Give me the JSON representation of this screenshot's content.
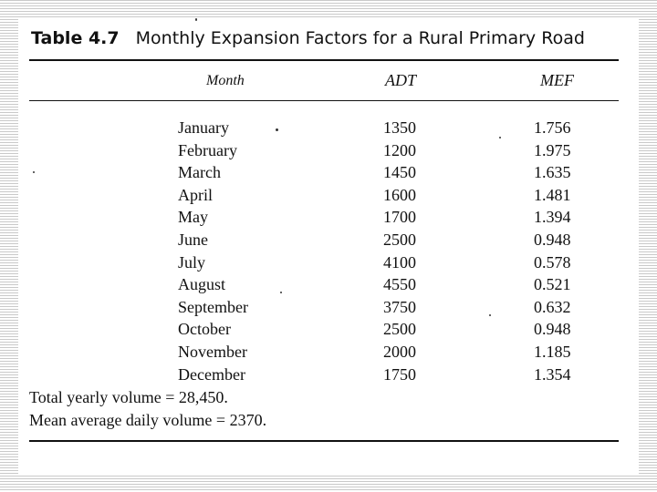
{
  "table": {
    "number": "Table 4.7",
    "title": "Monthly Expansion Factors for a Rural Primary Road",
    "headers": {
      "month": "Month",
      "adt": "ADT",
      "mef": "MEF"
    },
    "rows": [
      {
        "month": "January",
        "adt": "1350",
        "mef": "1.756"
      },
      {
        "month": "February",
        "adt": "1200",
        "mef": "1.975"
      },
      {
        "month": "March",
        "adt": "1450",
        "mef": "1.635"
      },
      {
        "month": "April",
        "adt": "1600",
        "mef": "1.481"
      },
      {
        "month": "May",
        "adt": "1700",
        "mef": "1.394"
      },
      {
        "month": "June",
        "adt": "2500",
        "mef": "0.948"
      },
      {
        "month": "July",
        "adt": "4100",
        "mef": "0.578"
      },
      {
        "month": "August",
        "adt": "4550",
        "mef": "0.521"
      },
      {
        "month": "September",
        "adt": "3750",
        "mef": "0.632"
      },
      {
        "month": "October",
        "adt": "2500",
        "mef": "0.948"
      },
      {
        "month": "November",
        "adt": "2000",
        "mef": "1.185"
      },
      {
        "month": "December",
        "adt": "1750",
        "mef": "1.354"
      }
    ],
    "notes": {
      "total": "Total yearly volume = 28,450.",
      "mean": "Mean average daily volume = 2370."
    }
  }
}
